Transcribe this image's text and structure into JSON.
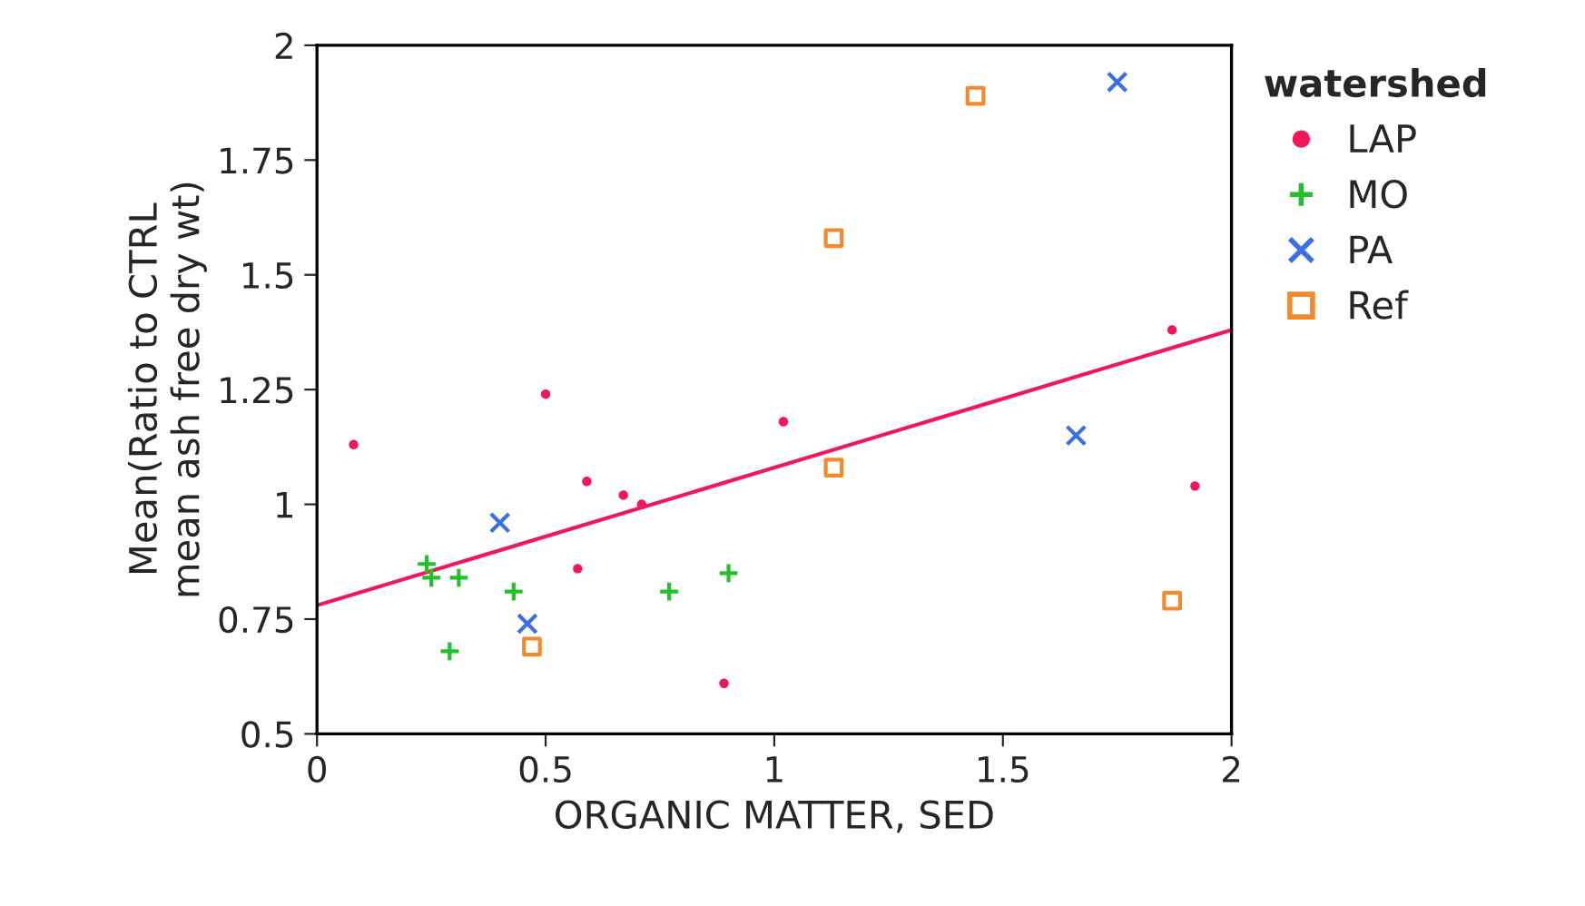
{
  "chart_data": {
    "type": "scatter",
    "xlabel": "ORGANIC MATTER, SED",
    "ylabel": "Mean(Ratio to CTRL\nmean ash free dry wt)",
    "legend_title": "watershed",
    "legend": "right",
    "grid": false,
    "xlim": [
      0,
      2
    ],
    "xticks": [
      0,
      0.5,
      1,
      1.5,
      2
    ],
    "ylim": [
      0.5,
      2
    ],
    "yticks": [
      0.5,
      0.75,
      1,
      1.25,
      1.5,
      1.75,
      2
    ],
    "series": [
      {
        "name": "LAP",
        "color": "#f0185a",
        "marker": "circle",
        "x": [
          0.08,
          0.5,
          0.59,
          0.67,
          0.71,
          0.57,
          0.89,
          1.02,
          1.87,
          1.92
        ],
        "values": [
          1.13,
          1.24,
          1.05,
          1.02,
          1.0,
          0.86,
          0.61,
          1.18,
          1.38,
          1.04
        ]
      },
      {
        "name": "MO",
        "color": "#22c02a",
        "marker": "cross",
        "x": [
          0.24,
          0.25,
          0.31,
          0.29,
          0.43,
          0.77,
          0.9
        ],
        "values": [
          0.87,
          0.84,
          0.84,
          0.68,
          0.81,
          0.81,
          0.85
        ]
      },
      {
        "name": "PA",
        "color": "#3a6fe8",
        "marker": "x",
        "x": [
          0.4,
          0.46,
          1.75,
          1.66
        ],
        "values": [
          0.96,
          0.74,
          1.92,
          1.15
        ]
      },
      {
        "name": "Ref",
        "color": "#f08a2a",
        "marker": "square",
        "x": [
          0.47,
          1.13,
          1.44,
          1.13,
          1.87
        ],
        "values": [
          0.69,
          1.58,
          1.89,
          1.08,
          0.79
        ]
      },
      {
        "type": "line",
        "color": "#f0185a",
        "marker": "none",
        "x": [
          0,
          2
        ],
        "values": [
          0.78,
          1.38
        ]
      }
    ]
  }
}
